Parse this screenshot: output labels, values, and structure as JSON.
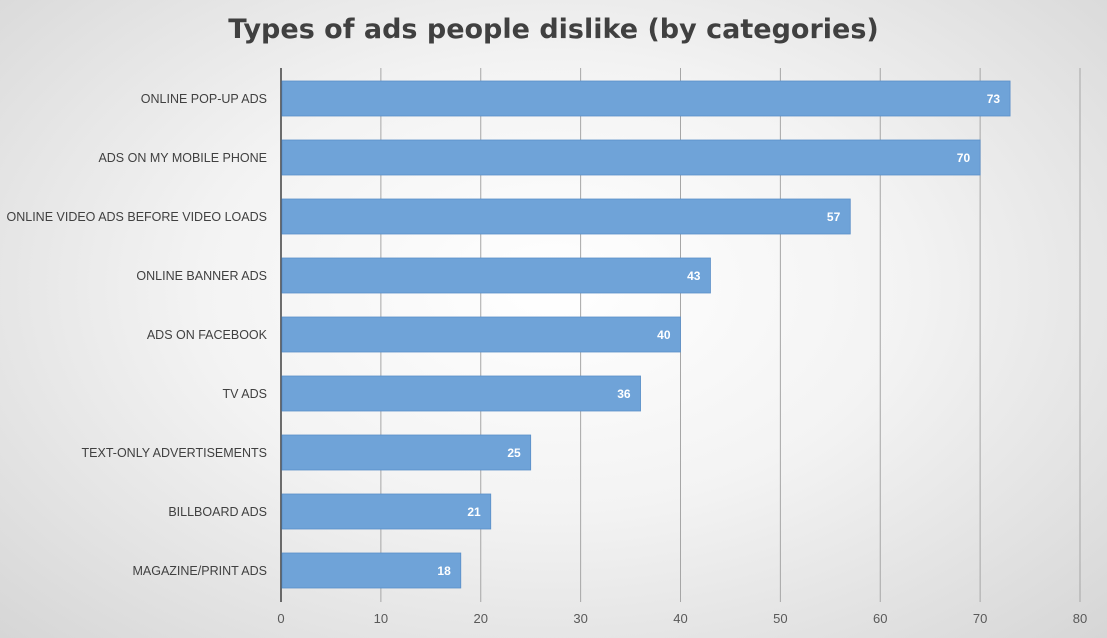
{
  "chart_data": {
    "type": "bar",
    "orientation": "horizontal",
    "title": "Types of ads people dislike (by categories)",
    "categories": [
      "ONLINE POP-UP ADS",
      "ADS ON MY MOBILE PHONE",
      "ONLINE VIDEO ADS BEFORE VIDEO LOADS",
      "ONLINE BANNER ADS",
      "ADS ON FACEBOOK",
      "TV ADS",
      "TEXT-ONLY ADVERTISEMENTS",
      "BILLBOARD ADS",
      "MAGAZINE/PRINT ADS"
    ],
    "values": [
      73,
      70,
      57,
      43,
      40,
      36,
      25,
      21,
      18
    ],
    "xlim": [
      0,
      80
    ],
    "xticks": [
      "0",
      "10",
      "20",
      "30",
      "40",
      "50",
      "60",
      "70",
      "80"
    ],
    "grid": "vertical",
    "legend": "none",
    "bar_color": "#6fa3d8",
    "bar_edge_color": "#5b8fc8"
  }
}
